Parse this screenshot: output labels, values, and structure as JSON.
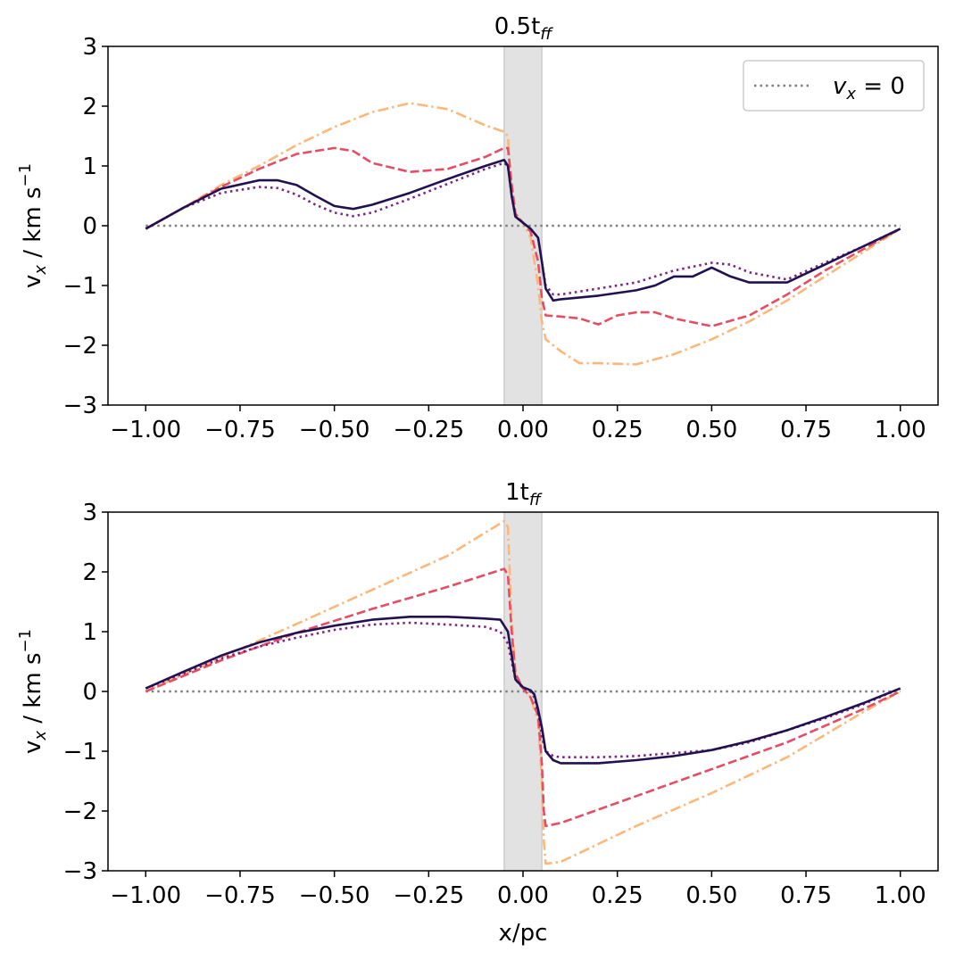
{
  "chart_data": [
    {
      "type": "line",
      "title_main": "0.5t",
      "title_sub": "ff",
      "xlabel": "",
      "ylabel_main": "v",
      "ylabel_sub": "x",
      "ylabel_rest": " / km s",
      "ylabel_sup": "−1",
      "xlim": [
        -1.1,
        1.1
      ],
      "ylim": [
        -3,
        3
      ],
      "xticks": [
        -1.0,
        -0.75,
        -0.5,
        -0.25,
        0.0,
        0.25,
        0.5,
        0.75,
        1.0
      ],
      "xtick_labels": [
        "−1.00",
        "−0.75",
        "−0.50",
        "−0.25",
        "0.00",
        "0.25",
        "0.50",
        "0.75",
        "1.00"
      ],
      "yticks": [
        -3,
        -2,
        -1,
        0,
        1,
        2,
        3
      ],
      "ytick_labels": [
        "−3",
        "−2",
        "−1",
        "0",
        "1",
        "2",
        "3"
      ],
      "shaded_region": [
        -0.05,
        0.05
      ],
      "reference_line": {
        "y": 0,
        "x": [
          -1.0,
          1.0
        ],
        "label_var": "v",
        "label_sub": "x",
        "label_rest": " = 0"
      },
      "legend_position": "top-right",
      "series": [
        {
          "name": "dashdot",
          "style": "dashdot",
          "color": "#fcb77a",
          "x": [
            -1.0,
            -0.9,
            -0.8,
            -0.7,
            -0.6,
            -0.5,
            -0.4,
            -0.3,
            -0.2,
            -0.1,
            -0.05,
            -0.04,
            -0.03,
            -0.02,
            0.0,
            0.02,
            0.04,
            0.05,
            0.06,
            0.1,
            0.15,
            0.2,
            0.3,
            0.4,
            0.5,
            0.6,
            0.7,
            0.8,
            0.9,
            1.0
          ],
          "y": [
            -0.05,
            0.3,
            0.68,
            1.0,
            1.35,
            1.65,
            1.9,
            2.05,
            1.95,
            1.68,
            1.57,
            1.5,
            0.5,
            0.2,
            0.05,
            -0.2,
            -1.0,
            -1.6,
            -1.9,
            -2.1,
            -2.3,
            -2.3,
            -2.32,
            -2.15,
            -1.9,
            -1.6,
            -1.25,
            -0.85,
            -0.45,
            -0.05
          ]
        },
        {
          "name": "dashed",
          "style": "dashed",
          "color": "#e34e65",
          "x": [
            -1.0,
            -0.9,
            -0.8,
            -0.7,
            -0.6,
            -0.5,
            -0.45,
            -0.4,
            -0.3,
            -0.2,
            -0.1,
            -0.05,
            -0.04,
            -0.03,
            -0.02,
            0.0,
            0.02,
            0.04,
            0.05,
            0.06,
            0.1,
            0.15,
            0.2,
            0.25,
            0.3,
            0.35,
            0.4,
            0.5,
            0.6,
            0.7,
            0.8,
            0.9,
            1.0
          ],
          "y": [
            -0.05,
            0.3,
            0.65,
            0.95,
            1.2,
            1.3,
            1.25,
            1.05,
            0.9,
            0.95,
            1.15,
            1.3,
            1.3,
            0.7,
            0.2,
            0.05,
            -0.1,
            -0.6,
            -1.2,
            -1.5,
            -1.52,
            -1.55,
            -1.65,
            -1.5,
            -1.45,
            -1.45,
            -1.55,
            -1.68,
            -1.5,
            -1.15,
            -0.75,
            -0.4,
            -0.05
          ]
        },
        {
          "name": "dotted",
          "style": "dotted",
          "color": "#7e2482",
          "x": [
            -1.0,
            -0.9,
            -0.8,
            -0.7,
            -0.65,
            -0.6,
            -0.55,
            -0.5,
            -0.45,
            -0.4,
            -0.3,
            -0.2,
            -0.1,
            -0.05,
            -0.04,
            -0.03,
            -0.02,
            0.0,
            0.02,
            0.04,
            0.05,
            0.06,
            0.08,
            0.1,
            0.2,
            0.3,
            0.35,
            0.4,
            0.5,
            0.55,
            0.6,
            0.7,
            0.8,
            0.9,
            1.0
          ],
          "y": [
            -0.05,
            0.3,
            0.55,
            0.65,
            0.63,
            0.52,
            0.35,
            0.22,
            0.16,
            0.22,
            0.45,
            0.7,
            0.95,
            1.05,
            1.0,
            0.5,
            0.15,
            0.05,
            -0.05,
            -0.2,
            -0.6,
            -1.0,
            -1.15,
            -1.15,
            -1.05,
            -0.95,
            -0.85,
            -0.75,
            -0.62,
            -0.65,
            -0.78,
            -0.9,
            -0.62,
            -0.35,
            -0.05
          ]
        },
        {
          "name": "solid",
          "style": "solid",
          "color": "#221150",
          "x": [
            -1.0,
            -0.9,
            -0.8,
            -0.7,
            -0.65,
            -0.6,
            -0.55,
            -0.5,
            -0.45,
            -0.4,
            -0.3,
            -0.2,
            -0.1,
            -0.05,
            -0.04,
            -0.03,
            -0.02,
            0.0,
            0.02,
            0.04,
            0.05,
            0.06,
            0.08,
            0.1,
            0.2,
            0.3,
            0.35,
            0.4,
            0.45,
            0.5,
            0.55,
            0.6,
            0.7,
            0.8,
            0.9,
            1.0
          ],
          "y": [
            -0.05,
            0.3,
            0.62,
            0.76,
            0.76,
            0.68,
            0.5,
            0.33,
            0.28,
            0.35,
            0.55,
            0.78,
            1.0,
            1.1,
            1.0,
            0.5,
            0.15,
            0.05,
            -0.05,
            -0.2,
            -0.6,
            -1.05,
            -1.25,
            -1.23,
            -1.17,
            -1.08,
            -1.0,
            -0.85,
            -0.85,
            -0.7,
            -0.85,
            -0.95,
            -0.95,
            -0.65,
            -0.35,
            -0.05
          ]
        }
      ]
    },
    {
      "type": "line",
      "title_main": "1t",
      "title_sub": "ff",
      "xlabel": "x/pc",
      "ylabel_main": "v",
      "ylabel_sub": "x",
      "ylabel_rest": " / km s",
      "ylabel_sup": "−1",
      "xlim": [
        -1.1,
        1.1
      ],
      "ylim": [
        -3,
        3
      ],
      "xticks": [
        -1.0,
        -0.75,
        -0.5,
        -0.25,
        0.0,
        0.25,
        0.5,
        0.75,
        1.0
      ],
      "xtick_labels": [
        "−1.00",
        "−0.75",
        "−0.50",
        "−0.25",
        "0.00",
        "0.25",
        "0.50",
        "0.75",
        "1.00"
      ],
      "yticks": [
        -3,
        -2,
        -1,
        0,
        1,
        2,
        3
      ],
      "ytick_labels": [
        "−3",
        "−2",
        "−1",
        "0",
        "1",
        "2",
        "3"
      ],
      "shaded_region": [
        -0.05,
        0.05
      ],
      "reference_line": {
        "y": 0,
        "x": [
          -1.0,
          1.0
        ]
      },
      "series": [
        {
          "name": "dashdot",
          "style": "dashdot",
          "color": "#fcb77a",
          "x": [
            -1.0,
            -0.8,
            -0.6,
            -0.4,
            -0.2,
            -0.05,
            -0.04,
            -0.03,
            -0.02,
            0.0,
            0.02,
            0.04,
            0.05,
            0.055,
            0.06,
            0.1,
            0.3,
            0.5,
            0.7,
            0.9,
            1.0
          ],
          "y": [
            0.0,
            0.57,
            1.13,
            1.7,
            2.27,
            2.85,
            2.75,
            1.2,
            0.3,
            0.05,
            -0.1,
            -0.5,
            -1.5,
            -2.5,
            -2.88,
            -2.85,
            -2.25,
            -1.7,
            -1.1,
            -0.35,
            0.0
          ]
        },
        {
          "name": "dashed",
          "style": "dashed",
          "color": "#e34e65",
          "x": [
            -1.0,
            -0.8,
            -0.6,
            -0.4,
            -0.2,
            -0.05,
            -0.04,
            -0.03,
            -0.02,
            0.0,
            0.02,
            0.04,
            0.05,
            0.055,
            0.06,
            0.1,
            0.3,
            0.5,
            0.7,
            0.9,
            1.0
          ],
          "y": [
            0.0,
            0.52,
            0.98,
            1.38,
            1.75,
            2.05,
            1.95,
            1.0,
            0.3,
            0.05,
            -0.1,
            -0.4,
            -1.2,
            -2.0,
            -2.25,
            -2.2,
            -1.75,
            -1.3,
            -0.85,
            -0.3,
            0.0
          ]
        },
        {
          "name": "dotted",
          "style": "dotted",
          "color": "#7e2482",
          "x": [
            -1.0,
            -0.9,
            -0.8,
            -0.7,
            -0.6,
            -0.5,
            -0.4,
            -0.3,
            -0.2,
            -0.1,
            -0.06,
            -0.04,
            -0.03,
            -0.02,
            0.0,
            0.02,
            0.03,
            0.04,
            0.05,
            0.06,
            0.08,
            0.1,
            0.2,
            0.3,
            0.4,
            0.5,
            0.6,
            0.7,
            0.8,
            0.9,
            1.0
          ],
          "y": [
            0.05,
            0.3,
            0.55,
            0.75,
            0.9,
            1.03,
            1.12,
            1.15,
            1.12,
            1.08,
            1.0,
            0.8,
            0.5,
            0.2,
            0.05,
            0.0,
            -0.1,
            -0.35,
            -0.75,
            -1.0,
            -1.08,
            -1.1,
            -1.1,
            -1.08,
            -1.03,
            -0.98,
            -0.85,
            -0.65,
            -0.45,
            -0.22,
            0.05
          ]
        },
        {
          "name": "solid",
          "style": "solid",
          "color": "#221150",
          "x": [
            -1.0,
            -0.9,
            -0.8,
            -0.7,
            -0.6,
            -0.5,
            -0.4,
            -0.3,
            -0.2,
            -0.1,
            -0.06,
            -0.04,
            -0.03,
            -0.02,
            0.0,
            0.02,
            0.03,
            0.04,
            0.05,
            0.06,
            0.08,
            0.1,
            0.2,
            0.3,
            0.4,
            0.5,
            0.6,
            0.7,
            0.8,
            0.9,
            1.0
          ],
          "y": [
            0.05,
            0.33,
            0.6,
            0.82,
            0.98,
            1.1,
            1.2,
            1.25,
            1.25,
            1.22,
            1.2,
            1.0,
            0.6,
            0.2,
            0.07,
            0.02,
            -0.05,
            -0.3,
            -0.6,
            -1.0,
            -1.15,
            -1.2,
            -1.2,
            -1.15,
            -1.08,
            -0.98,
            -0.83,
            -0.65,
            -0.43,
            -0.2,
            0.05
          ]
        }
      ]
    }
  ]
}
